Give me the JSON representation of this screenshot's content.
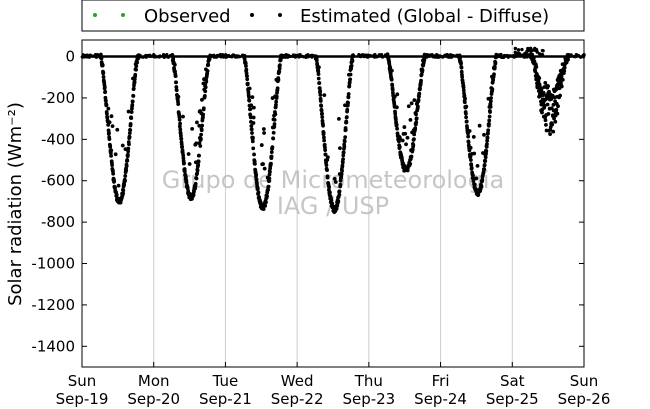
{
  "chart_data": {
    "type": "scatter",
    "ylabel": "Solar radiation (Wm⁻²)",
    "ylim": [
      -1500,
      80
    ],
    "yticks": [
      0,
      -200,
      -400,
      -600,
      -800,
      -1000,
      -1200,
      -1400
    ],
    "xlim": [
      0,
      7
    ],
    "xticks": [
      {
        "day": "Sun",
        "date": "Sep-19"
      },
      {
        "day": "Mon",
        "date": "Sep-20"
      },
      {
        "day": "Tue",
        "date": "Sep-21"
      },
      {
        "day": "Wed",
        "date": "Sep-22"
      },
      {
        "day": "Thu",
        "date": "Sep-23"
      },
      {
        "day": "Fri",
        "date": "Sep-24"
      },
      {
        "day": "Sat",
        "date": "Sep-25"
      },
      {
        "day": "Sun",
        "date": "Sep-26"
      }
    ],
    "grid": "vertical",
    "legend_position": "top",
    "watermark": [
      "Grupo de Micrometeorologia",
      "IAG / USP"
    ],
    "series": [
      {
        "name": "Observed",
        "color": "#2e9e2e",
        "style": "dots"
      },
      {
        "name": "Estimated (Global - Diffuse)",
        "color": "#000000",
        "style": "dots",
        "daily_peaks": [
          {
            "day": 0,
            "min": -700
          },
          {
            "day": 1,
            "min": -680
          },
          {
            "day": 2,
            "min": -730
          },
          {
            "day": 3,
            "min": -740
          },
          {
            "day": 4,
            "min": -550
          },
          {
            "day": 5,
            "min": -660
          },
          {
            "day": 6,
            "min": -380
          }
        ]
      }
    ]
  }
}
